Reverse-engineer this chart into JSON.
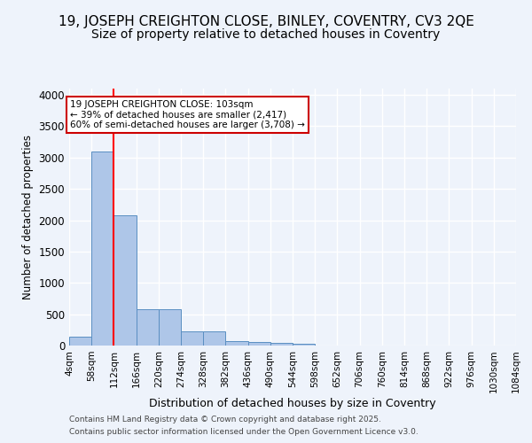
{
  "title1": "19, JOSEPH CREIGHTON CLOSE, BINLEY, COVENTRY, CV3 2QE",
  "title2": "Size of property relative to detached houses in Coventry",
  "xlabel": "Distribution of detached houses by size in Coventry",
  "ylabel": "Number of detached properties",
  "bins": [
    "4sqm",
    "58sqm",
    "112sqm",
    "166sqm",
    "220sqm",
    "274sqm",
    "328sqm",
    "382sqm",
    "436sqm",
    "490sqm",
    "544sqm",
    "598sqm",
    "652sqm",
    "706sqm",
    "760sqm",
    "814sqm",
    "868sqm",
    "922sqm",
    "976sqm",
    "1030sqm",
    "1084sqm"
  ],
  "bin_edges": [
    4,
    58,
    112,
    166,
    220,
    274,
    328,
    382,
    436,
    490,
    544,
    598,
    652,
    706,
    760,
    814,
    868,
    922,
    976,
    1030,
    1084
  ],
  "bar_values": [
    140,
    3100,
    2080,
    575,
    575,
    220,
    220,
    75,
    55,
    45,
    30,
    0,
    0,
    0,
    0,
    0,
    0,
    0,
    0,
    0
  ],
  "bar_color": "#aec6e8",
  "bar_edge_color": "#5a8fc2",
  "red_line_x": 112,
  "ylim": [
    0,
    4100
  ],
  "yticks": [
    0,
    500,
    1000,
    1500,
    2000,
    2500,
    3000,
    3500,
    4000
  ],
  "annotation_text": "19 JOSEPH CREIGHTON CLOSE: 103sqm\n← 39% of detached houses are smaller (2,417)\n60% of semi-detached houses are larger (3,708) →",
  "annotation_box_color": "#ffffff",
  "annotation_box_edge_color": "#cc0000",
  "footnote1": "Contains HM Land Registry data © Crown copyright and database right 2025.",
  "footnote2": "Contains public sector information licensed under the Open Government Licence v3.0.",
  "bg_color": "#eef3fb",
  "grid_color": "#ffffff",
  "title_fontsize": 11,
  "subtitle_fontsize": 10
}
